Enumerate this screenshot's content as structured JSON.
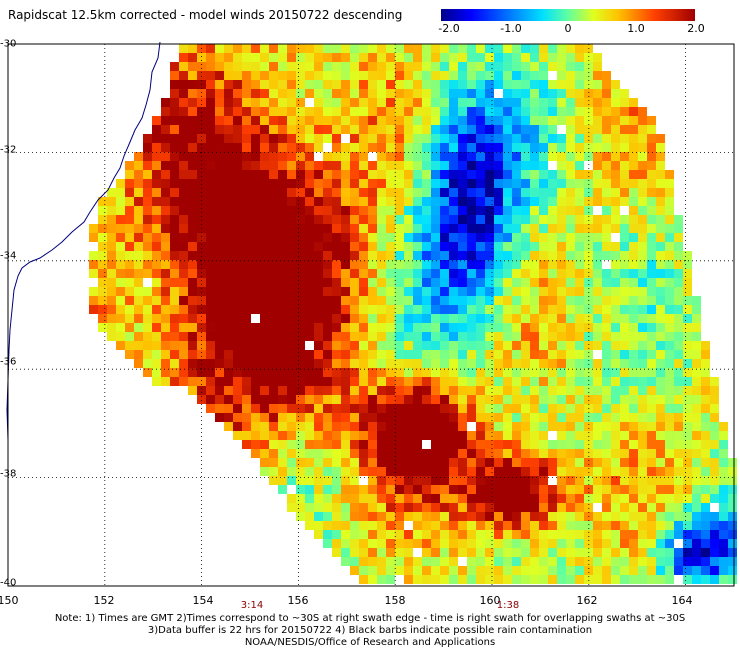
{
  "title": "Rapidscat 12.5km corrected - model winds 20150722 descending",
  "colorbar": {
    "labels": [
      "-2.0",
      "-1.0",
      "0",
      "1.0",
      "2.0"
    ],
    "min": -2.0,
    "max": 2.0,
    "colors": [
      "#00008b",
      "#0000ff",
      "#0080ff",
      "#00e0ff",
      "#60ffa0",
      "#e0ff20",
      "#ffc000",
      "#ff4000",
      "#a00000"
    ]
  },
  "lat_labels": [
    "-30",
    "-32",
    "-34",
    "-36",
    "-38",
    "-40"
  ],
  "lon_labels": [
    "150",
    "152",
    "154",
    "156",
    "158",
    "160",
    "162",
    "164"
  ],
  "time_labels": [
    "3:14",
    "1:38"
  ],
  "notes": [
    "Note: 1) Times are GMT 2)Times correspond to ~30S at right swath edge - time is right swath for overlapping swaths at ~30S",
    "3)Data buffer is 22 hrs for 20150722 4) Black barbs indicate possible rain contamination",
    "NOAA/NESDIS/Office of Research and Applications"
  ],
  "chart_data": {
    "type": "heatmap",
    "title": "Rapidscat 12.5km corrected - model winds 20150722 descending",
    "x_range": [
      150,
      165
    ],
    "y_range": [
      -40,
      -30
    ],
    "xlabel": "",
    "ylabel": "",
    "value_range": [
      -2.0,
      2.0
    ],
    "grid": true,
    "high_regions": [
      {
        "lon": [
          153.0,
          157.0
        ],
        "lat": [
          -37.0,
          -31.0
        ],
        "value": 2.0
      },
      {
        "lon": [
          157.5,
          159.5
        ],
        "lat": [
          -38.0,
          -36.3
        ],
        "value": 2.0
      },
      {
        "lon": [
          159.5,
          161.5
        ],
        "lat": [
          -39.0,
          -37.5
        ],
        "value": 2.0
      }
    ],
    "low_regions": [
      {
        "lon": [
          158.5,
          160.5
        ],
        "lat": [
          -35.0,
          -31.0
        ],
        "value": -1.2
      },
      {
        "lon": [
          163.5,
          165.0
        ],
        "lat": [
          -40.0,
          -38.7
        ],
        "value": -1.5
      }
    ]
  }
}
